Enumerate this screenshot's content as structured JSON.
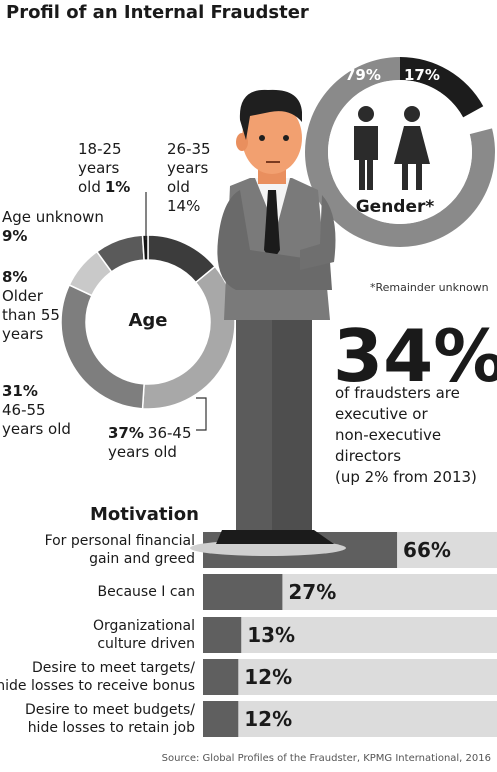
{
  "title": "Profil of an Internal Fraudster",
  "chart_data": [
    {
      "type": "pie",
      "title": "Age",
      "categories": [
        "26-35\nyears\nold",
        "36-45\nyears old",
        "46-55\nyears old",
        "Older\nthan 55\nyears",
        "Age unknown",
        "18-25\nyears\nold"
      ],
      "values": [
        14,
        37,
        31,
        8,
        9,
        1
      ],
      "value_labels": [
        "14%",
        "37%",
        "31%",
        "8%",
        "9%",
        "1%"
      ],
      "colors": [
        "#3c3c3c",
        "#a8a8a8",
        "#7e7e7e",
        "#c9c9c9",
        "#5a5a5a",
        "#151515"
      ]
    },
    {
      "type": "pie",
      "title": "Gender*",
      "values": [
        79,
        17
      ],
      "value_labels": [
        "79%",
        "17%"
      ],
      "colors": [
        "#8a8a8a",
        "#1c1c1c"
      ],
      "note": "*Remainder unknown"
    },
    {
      "type": "bar",
      "title": "Motivation",
      "categories": [
        "For personal financial\ngain and greed",
        "Because I can",
        "Organizational\nculture driven",
        "Desire to meet targets/\nhide losses to receive bonus",
        "Desire to meet budgets/\nhide losses to retain job"
      ],
      "values": [
        66,
        27,
        13,
        12,
        12
      ],
      "value_labels": [
        "66%",
        "27%",
        "13%",
        "12%",
        "12%"
      ],
      "color": "#5f5f5f",
      "xlim": [
        0,
        100
      ]
    }
  ],
  "stat": {
    "headline": "34%",
    "text": "of fraudsters are\nexecutive or\nnon-executive\ndirectors\n(up 2% from 2013)"
  },
  "source": "Source: Global Profiles of the Fraudster, KPMG International, 2016"
}
